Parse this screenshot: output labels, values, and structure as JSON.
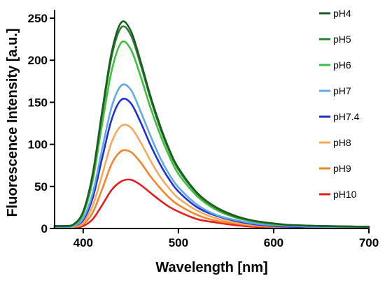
{
  "chart_data": {
    "type": "line",
    "xlabel": "Wavelength [nm]",
    "ylabel": "Fluorescence Intensity [a.u.]",
    "xlim": [
      370,
      700
    ],
    "ylim": [
      0,
      260
    ],
    "x_ticks": [
      400,
      500,
      600,
      700
    ],
    "y_ticks": [
      0,
      50,
      100,
      150,
      200,
      250
    ],
    "grid": false,
    "legend_position": "right",
    "x": [
      370,
      380,
      390,
      400,
      410,
      420,
      430,
      440,
      450,
      460,
      470,
      480,
      490,
      500,
      520,
      540,
      560,
      580,
      600,
      620,
      650,
      700
    ],
    "series": [
      {
        "name": "pH4",
        "color": "#1b5e20",
        "values": [
          3,
          3,
          5,
          20,
          65,
          140,
          210,
          245,
          235,
          200,
          160,
          125,
          95,
          72,
          42,
          25,
          15,
          9,
          6,
          4,
          3,
          2
        ]
      },
      {
        "name": "pH5",
        "color": "#2e7d32",
        "values": [
          3,
          3,
          5,
          20,
          63,
          137,
          205,
          239,
          230,
          196,
          157,
          122,
          93,
          70,
          41,
          24,
          14,
          9,
          6,
          4,
          3,
          2
        ]
      },
      {
        "name": "pH6",
        "color": "#3fbf3f",
        "values": [
          3,
          3,
          4,
          17,
          57,
          125,
          188,
          221,
          213,
          182,
          146,
          114,
          87,
          65,
          38,
          22,
          13,
          8,
          5,
          4,
          3,
          2
        ]
      },
      {
        "name": "pH7",
        "color": "#64a8e8",
        "values": [
          2,
          2,
          3,
          12,
          42,
          95,
          145,
          170,
          165,
          140,
          112,
          86,
          65,
          49,
          28,
          16,
          10,
          6,
          4,
          3,
          2,
          1
        ]
      },
      {
        "name": "pH7.4",
        "color": "#1f2fd6",
        "values": [
          2,
          2,
          3,
          10,
          36,
          84,
          130,
          153,
          149,
          127,
          101,
          78,
          59,
          44,
          25,
          15,
          9,
          5,
          3,
          2,
          2,
          1
        ]
      },
      {
        "name": "pH8",
        "color": "#f7a85a",
        "values": [
          2,
          2,
          2,
          7,
          27,
          64,
          103,
          122,
          120,
          103,
          82,
          63,
          48,
          36,
          21,
          12,
          7,
          4,
          3,
          2,
          1,
          1
        ]
      },
      {
        "name": "pH9",
        "color": "#f2862a",
        "values": [
          1,
          1,
          2,
          5,
          19,
          47,
          77,
          92,
          91,
          79,
          63,
          49,
          37,
          28,
          16,
          9,
          6,
          3,
          2,
          2,
          1,
          1
        ]
      },
      {
        "name": "pH10",
        "color": "#e61e1e",
        "values": [
          1,
          1,
          1,
          3,
          11,
          28,
          46,
          56,
          58,
          52,
          43,
          34,
          26,
          20,
          11,
          7,
          4,
          2,
          2,
          1,
          1,
          1
        ]
      }
    ]
  }
}
